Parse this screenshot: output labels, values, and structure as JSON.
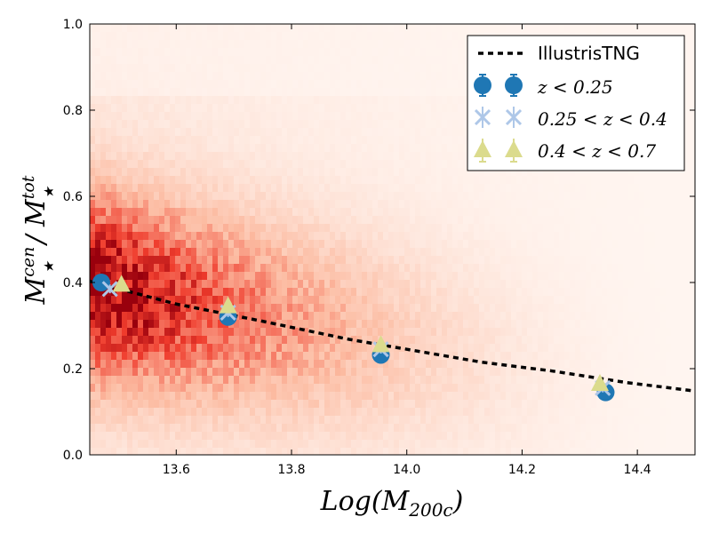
{
  "chart_data": {
    "type": "scatter",
    "xlim": [
      13.45,
      14.5
    ],
    "ylim": [
      0.0,
      1.0
    ],
    "x_ticks": [
      "13.6",
      "13.8",
      "14.0",
      "14.2",
      "14.4"
    ],
    "x_tick_values": [
      13.6,
      13.8,
      14.0,
      14.2,
      14.4
    ],
    "y_ticks": [
      "0.0",
      "0.2",
      "0.4",
      "0.6",
      "0.8",
      "1.0"
    ],
    "y_tick_values": [
      0.0,
      0.2,
      0.4,
      0.6,
      0.8,
      1.0
    ],
    "xlabel": {
      "base": "Log(M",
      "sub": "200c",
      "close": ")"
    },
    "ylabel": {
      "num_base": "M",
      "num_sup": "cen",
      "num_sub": "★",
      "slash": " / ",
      "den_base": "M",
      "den_sup": "tot",
      "den_sub": "★"
    },
    "legend": {
      "position": "top-right",
      "entries": [
        {
          "label": "IllustrisTNG",
          "marker": "dashed-line",
          "math": false
        },
        {
          "label": "z < 0.25",
          "marker": "circle",
          "math": true
        },
        {
          "label": "0.25 < z < 0.4",
          "marker": "x",
          "math": true
        },
        {
          "label": "0.4 < z < 0.7",
          "marker": "triangle",
          "math": true
        }
      ]
    },
    "colors": {
      "illustris": "#000000",
      "z1": "#1f77b4",
      "z2": "#aec7e8",
      "z3": "#dbdb8d",
      "hexbin_low": "#fff5f0",
      "hexbin_high": "#99000d"
    },
    "series": [
      {
        "name": "IllustrisTNG",
        "style": "dashed-line",
        "x": [
          13.45,
          13.6,
          13.75,
          13.9,
          14.0,
          14.13,
          14.25,
          14.38,
          14.5
        ],
        "y": [
          0.403,
          0.35,
          0.31,
          0.268,
          0.245,
          0.215,
          0.195,
          0.168,
          0.148
        ]
      },
      {
        "name": "z < 0.25",
        "style": "circle",
        "x": [
          13.47,
          13.69,
          13.955,
          14.345
        ],
        "y": [
          0.4,
          0.32,
          0.232,
          0.145
        ],
        "yerr": [
          0.01,
          0.01,
          0.01,
          0.01
        ]
      },
      {
        "name": "0.25 < z < 0.4",
        "style": "x",
        "x": [
          13.485,
          13.69,
          13.955,
          14.34
        ],
        "y": [
          0.385,
          0.33,
          0.245,
          0.155
        ],
        "yerr": [
          0.01,
          0.01,
          0.01,
          0.01
        ]
      },
      {
        "name": "0.4 < z < 0.7",
        "style": "triangle",
        "x": [
          13.505,
          13.69,
          13.955,
          14.335
        ],
        "y": [
          0.395,
          0.345,
          0.255,
          0.165
        ],
        "yerr": [
          0.01,
          0.01,
          0.01,
          0.01
        ]
      }
    ],
    "background_density": {
      "type": "hexbin",
      "description_free": true
    }
  }
}
